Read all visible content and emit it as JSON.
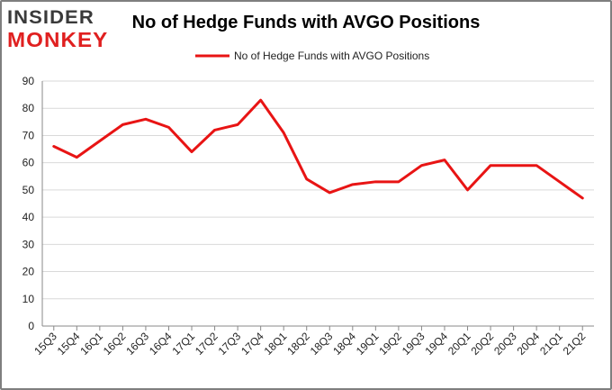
{
  "logo": {
    "line1": "INSIDER",
    "line2": "MONKEY"
  },
  "colors": {
    "series": "#e81414",
    "grid": "#d9d9d9",
    "axis": "#888888",
    "brand_red": "#e02020",
    "brand_dark": "#3a3a3a"
  },
  "chart_data": {
    "type": "line",
    "title": "No of Hedge Funds with AVGO Positions",
    "xlabel": "",
    "ylabel": "",
    "ylim": [
      0,
      90
    ],
    "yticks": [
      0,
      10,
      20,
      30,
      40,
      50,
      60,
      70,
      80,
      90
    ],
    "grid": true,
    "legend_position": "top",
    "categories": [
      "15Q3",
      "15Q4",
      "16Q1",
      "16Q2",
      "16Q3",
      "16Q4",
      "17Q1",
      "17Q2",
      "17Q3",
      "17Q4",
      "18Q1",
      "18Q2",
      "18Q3",
      "18Q4",
      "19Q1",
      "19Q2",
      "19Q3",
      "19Q4",
      "20Q1",
      "20Q2",
      "20Q3",
      "20Q4",
      "21Q1",
      "21Q2"
    ],
    "series": [
      {
        "name": "No of Hedge Funds with AVGO Positions",
        "values": [
          66,
          62,
          68,
          74,
          76,
          73,
          64,
          72,
          74,
          83,
          71,
          54,
          49,
          52,
          53,
          53,
          59,
          61,
          50,
          59,
          59,
          59,
          53,
          47
        ]
      }
    ]
  }
}
